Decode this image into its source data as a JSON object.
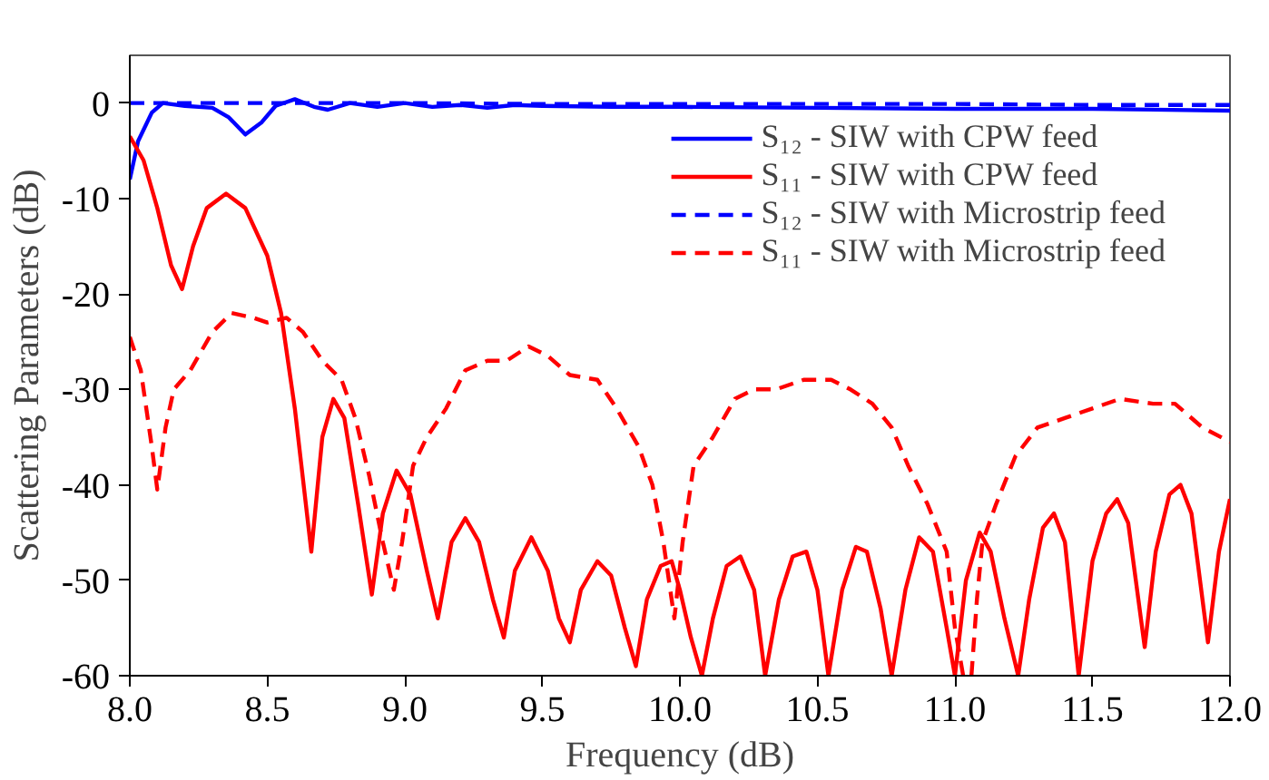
{
  "chart_data": {
    "type": "line",
    "xlabel": "Frequency (dB)",
    "ylabel": "Scattering Parameters (dB)",
    "xlim": [
      8.0,
      12.0
    ],
    "ylim": [
      -60,
      5
    ],
    "xticks": [
      {
        "value": 8.0,
        "label": "8.0"
      },
      {
        "value": 8.5,
        "label": "8.5"
      },
      {
        "value": 9.0,
        "label": "9.0"
      },
      {
        "value": 9.5,
        "label": "9.5"
      },
      {
        "value": 10.0,
        "label": "10.0"
      },
      {
        "value": 10.5,
        "label": "10.5"
      },
      {
        "value": 11.0,
        "label": "11.0"
      },
      {
        "value": 11.5,
        "label": "11.5"
      },
      {
        "value": 12.0,
        "label": "12.0"
      }
    ],
    "yticks": [
      0,
      -10,
      -20,
      -30,
      -40,
      -50,
      -60
    ],
    "grid": false,
    "legend": "top right",
    "marker": "none",
    "series": [
      {
        "name": "S₁₂ - SIW with CPW feed",
        "color": "#0000ff",
        "line_style": "solid",
        "x": [
          8.0,
          8.03,
          8.08,
          8.12,
          8.2,
          8.3,
          8.36,
          8.42,
          8.48,
          8.53,
          8.6,
          8.67,
          8.72,
          8.8,
          8.9,
          9.0,
          9.1,
          9.2,
          9.3,
          9.4,
          9.5,
          9.75,
          10.0,
          10.5,
          11.0,
          11.5,
          12.0
        ],
        "values": [
          -8,
          -4,
          -1,
          0,
          -0.3,
          -0.5,
          -1.5,
          -3.3,
          -2,
          -0.3,
          0.4,
          -0.4,
          -0.7,
          0,
          -0.4,
          0,
          -0.4,
          -0.2,
          -0.5,
          -0.2,
          -0.3,
          -0.4,
          -0.4,
          -0.5,
          -0.6,
          -0.6,
          -0.8
        ]
      },
      {
        "name": "S₁₁ - SIW with CPW feed",
        "color": "#ff0000",
        "line_style": "solid",
        "x": [
          8.0,
          8.05,
          8.1,
          8.15,
          8.19,
          8.23,
          8.28,
          8.35,
          8.42,
          8.5,
          8.55,
          8.6,
          8.66,
          8.7,
          8.74,
          8.78,
          8.83,
          8.88,
          8.92,
          8.97,
          9.02,
          9.08,
          9.12,
          9.17,
          9.22,
          9.27,
          9.32,
          9.36,
          9.4,
          9.46,
          9.52,
          9.56,
          9.6,
          9.64,
          9.7,
          9.75,
          9.8,
          9.84,
          9.88,
          9.93,
          9.97,
          10.0,
          10.04,
          10.08,
          10.12,
          10.17,
          10.22,
          10.27,
          10.31,
          10.36,
          10.41,
          10.46,
          10.5,
          10.54,
          10.59,
          10.64,
          10.68,
          10.73,
          10.77,
          10.82,
          10.87,
          10.92,
          10.97,
          11.0,
          11.04,
          11.09,
          11.13,
          11.18,
          11.23,
          11.27,
          11.32,
          11.36,
          11.4,
          11.45,
          11.5,
          11.55,
          11.59,
          11.63,
          11.69,
          11.73,
          11.78,
          11.82,
          11.86,
          11.92,
          11.96,
          12.0
        ],
        "values": [
          -3.5,
          -6,
          -11,
          -17,
          -19.5,
          -15,
          -11,
          -9.5,
          -11,
          -16,
          -22,
          -32,
          -47,
          -35,
          -31,
          -33,
          -42,
          -51.5,
          -43,
          -38.5,
          -41,
          -49,
          -54,
          -46,
          -43.5,
          -46,
          -52,
          -56,
          -49,
          -45.5,
          -49,
          -54,
          -56.5,
          -51,
          -48,
          -49.5,
          -55,
          -59,
          -52,
          -48.5,
          -48,
          -51,
          -56,
          -60,
          -54,
          -48.5,
          -47.5,
          -51,
          -60,
          -52,
          -47.5,
          -47,
          -51,
          -60,
          -51,
          -46.5,
          -47,
          -53,
          -60,
          -51,
          -45.5,
          -47,
          -55,
          -60,
          -50,
          -45,
          -47,
          -54,
          -60,
          -52,
          -44.5,
          -43,
          -46,
          -60,
          -48,
          -43,
          -41.5,
          -44,
          -57,
          -47,
          -41,
          -40,
          -43,
          -56.5,
          -47,
          -41.5
        ]
      },
      {
        "name": "S₁₂ - SIW with Microstrip feed",
        "color": "#0000ff",
        "line_style": "dashed",
        "x": [
          8.0,
          8.5,
          9.0,
          9.5,
          10.0,
          10.5,
          11.0,
          11.5,
          12.0
        ],
        "values": [
          0,
          0,
          0,
          -0.1,
          -0.1,
          -0.1,
          -0.1,
          -0.2,
          -0.2
        ]
      },
      {
        "name": "S₁₁ - SIW with Microstrip feed",
        "color": "#ff0000",
        "line_style": "dashed",
        "x": [
          8.0,
          8.04,
          8.08,
          8.1,
          8.13,
          8.16,
          8.22,
          8.3,
          8.37,
          8.45,
          8.5,
          8.57,
          8.63,
          8.7,
          8.77,
          8.82,
          8.87,
          8.92,
          8.96,
          8.99,
          9.03,
          9.08,
          9.15,
          9.22,
          9.3,
          9.37,
          9.45,
          9.52,
          9.6,
          9.7,
          9.77,
          9.85,
          9.9,
          9.94,
          9.98,
          10.01,
          10.05,
          10.12,
          10.2,
          10.27,
          10.35,
          10.45,
          10.55,
          10.62,
          10.7,
          10.77,
          10.83,
          10.9,
          10.97,
          11.0,
          11.03,
          11.06,
          11.08,
          11.1,
          11.15,
          11.22,
          11.3,
          11.4,
          11.5,
          11.6,
          11.72,
          11.8,
          11.9,
          12.0
        ],
        "values": [
          -24.5,
          -28,
          -36,
          -40.5,
          -34,
          -30,
          -28,
          -24,
          -22,
          -22.5,
          -23,
          -22.5,
          -24,
          -27,
          -29,
          -33,
          -39,
          -46,
          -51,
          -46,
          -38,
          -35,
          -32,
          -28,
          -27,
          -27,
          -25.5,
          -26.5,
          -28.5,
          -29,
          -32,
          -36,
          -40,
          -46,
          -54,
          -46,
          -38,
          -35,
          -31,
          -30,
          -30,
          -29,
          -29,
          -30,
          -31.5,
          -34,
          -38,
          -42,
          -47,
          -55,
          -60,
          -60,
          -52,
          -46,
          -42,
          -37,
          -34,
          -33,
          -32,
          -31,
          -31.5,
          -31.5,
          -34,
          -35.5
        ]
      }
    ]
  }
}
